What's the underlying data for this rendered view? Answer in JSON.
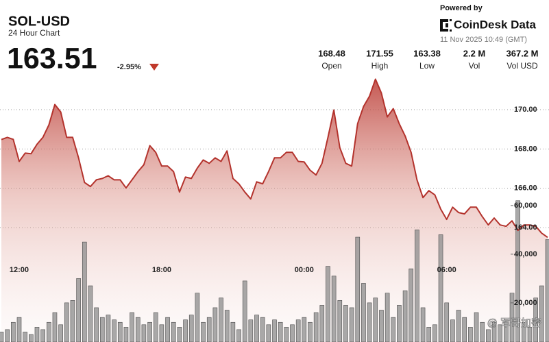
{
  "header": {
    "symbol": "SOL-USD",
    "subtitle": "24 Hour Chart",
    "price": 163.51,
    "change": "-2.95%",
    "powered_by": "Powered by",
    "brand": "CoinDesk Data",
    "timestamp": "11 Nov 2025 10:49 (GMT)"
  },
  "stats": [
    {
      "value": 168.48,
      "label": "Open"
    },
    {
      "value": 171.55,
      "label": "High"
    },
    {
      "value": 163.38,
      "label": "Low"
    },
    {
      "value": "2.2 M",
      "label": "Vol"
    },
    {
      "value": "367.2 M",
      "label": "Vol USD"
    }
  ],
  "watermark": "@ 军哥加密",
  "chart_data": {
    "type": "area",
    "categories": [
      null,
      null,
      null,
      "12:00",
      null,
      null,
      null,
      null,
      null,
      null,
      null,
      null,
      null,
      null,
      null,
      null,
      null,
      null,
      null,
      null,
      null,
      null,
      null,
      null,
      null,
      null,
      null,
      "18:00",
      null,
      null,
      null,
      null,
      null,
      null,
      null,
      null,
      null,
      null,
      null,
      null,
      null,
      null,
      null,
      null,
      null,
      null,
      null,
      null,
      null,
      null,
      null,
      "00:00",
      null,
      null,
      null,
      null,
      null,
      null,
      null,
      null,
      null,
      null,
      null,
      null,
      null,
      null,
      null,
      null,
      null,
      null,
      null,
      null,
      null,
      null,
      null,
      "06:00",
      null,
      null,
      null,
      null,
      null,
      null,
      null,
      null,
      null,
      null,
      null,
      null,
      null,
      null,
      null,
      null,
      null
    ],
    "series": [
      {
        "name": "SOL-USD",
        "type": "area",
        "color": "#b3322c",
        "values": [
          168.48,
          168.59,
          168.49,
          167.37,
          167.79,
          167.76,
          168.24,
          168.59,
          169.22,
          170.26,
          169.88,
          168.59,
          168.59,
          167.55,
          166.3,
          166.09,
          166.43,
          166.5,
          166.64,
          166.43,
          166.43,
          166.02,
          166.43,
          166.85,
          167.2,
          168.17,
          167.83,
          167.13,
          167.13,
          166.85,
          165.81,
          166.57,
          166.5,
          167.03,
          167.44,
          167.27,
          167.55,
          167.37,
          167.9,
          166.5,
          166.23,
          165.81,
          165.46,
          166.33,
          166.23,
          166.85,
          167.55,
          167.55,
          167.83,
          167.83,
          167.37,
          167.34,
          166.92,
          166.68,
          167.27,
          168.59,
          169.98,
          168.07,
          167.27,
          167.13,
          169.29,
          170.16,
          170.68,
          171.55,
          170.85,
          169.63,
          170.05,
          169.29,
          168.66,
          167.83,
          166.43,
          165.53,
          165.88,
          165.67,
          164.94,
          164.42,
          165.04,
          164.77,
          164.7,
          165.04,
          165.04,
          164.56,
          164.14,
          164.49,
          164.14,
          164.07,
          164.35,
          163.86,
          164.14,
          164.14,
          164.07,
          163.72,
          163.51
        ]
      },
      {
        "name": "Vol",
        "type": "bar",
        "axis": "y2",
        "color": "#8c8c8c",
        "values": [
          8000,
          9000,
          12000,
          14000,
          8000,
          7000,
          10000,
          9000,
          12000,
          16000,
          11000,
          20000,
          21000,
          30000,
          45000,
          27000,
          18000,
          14000,
          15000,
          13000,
          12000,
          10000,
          16000,
          14000,
          11000,
          12000,
          16000,
          11000,
          14000,
          12000,
          10000,
          13000,
          15000,
          24000,
          12000,
          14000,
          18000,
          22000,
          17000,
          12000,
          9000,
          29000,
          13000,
          15000,
          14000,
          11000,
          13000,
          12000,
          10000,
          11000,
          13000,
          14000,
          12000,
          16000,
          19000,
          35000,
          31000,
          21000,
          19000,
          18000,
          47000,
          28000,
          20000,
          22000,
          17000,
          24000,
          14000,
          19000,
          25000,
          34000,
          50000,
          18000,
          10000,
          11000,
          48000,
          20000,
          13000,
          17000,
          14000,
          10000,
          16000,
          12000,
          9000,
          12000,
          11000,
          13000,
          24000,
          62000,
          12000,
          10000,
          22000,
          27000,
          46000
        ]
      }
    ],
    "ylim": [
      158.19,
      171.74
    ],
    "yticks": [
      {
        "value": 164,
        "label": "164.00"
      },
      {
        "value": 166,
        "label": "166.00"
      },
      {
        "value": 168,
        "label": "168.00"
      },
      {
        "value": 170,
        "label": "170.00"
      }
    ],
    "y2lim": [
      3900,
      113500
    ],
    "y2ticks": [
      {
        "value": 20000,
        "label": "20,000"
      },
      {
        "value": 40000,
        "label": "40,000"
      },
      {
        "value": 60000,
        "label": "60,000"
      }
    ],
    "grid": true
  }
}
